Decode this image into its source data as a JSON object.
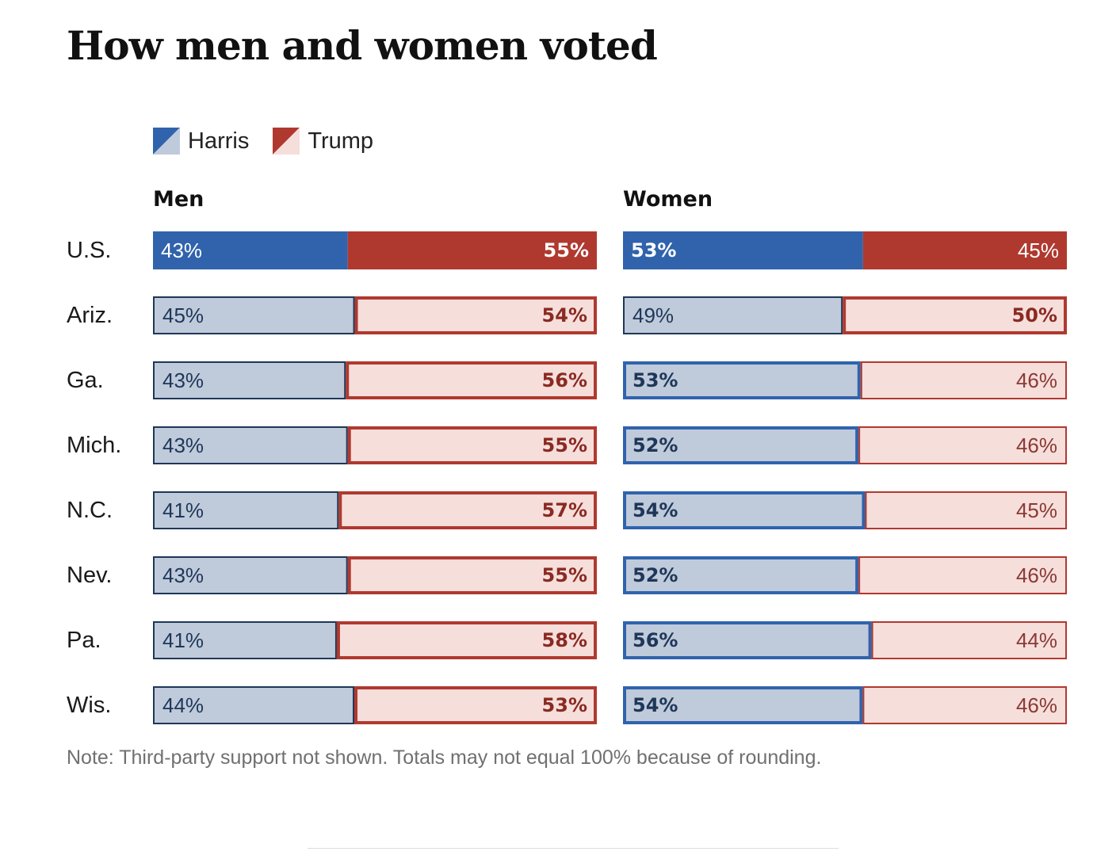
{
  "chart_data": {
    "type": "bar",
    "title": "How men and women voted",
    "legend": [
      "Harris",
      "Trump"
    ],
    "categories": [
      "U.S.",
      "Ariz.",
      "Ga.",
      "Mich.",
      "N.C.",
      "Nev.",
      "Pa.",
      "Wis."
    ],
    "panels": [
      {
        "name": "Men",
        "series": [
          {
            "name": "Harris",
            "values": [
              43,
              45,
              43,
              43,
              41,
              43,
              41,
              44
            ]
          },
          {
            "name": "Trump",
            "values": [
              55,
              54,
              56,
              55,
              57,
              55,
              58,
              53
            ]
          }
        ]
      },
      {
        "name": "Women",
        "series": [
          {
            "name": "Harris",
            "values": [
              53,
              49,
              53,
              52,
              54,
              52,
              56,
              54
            ]
          },
          {
            "name": "Trump",
            "values": [
              45,
              50,
              46,
              46,
              45,
              46,
              44,
              46
            ]
          }
        ]
      }
    ],
    "note": "Note: Third-party support not shown. Totals may not equal 100% because of rounding.",
    "colors": {
      "harris_strong": "#3063ac",
      "harris_light": "#bfcadb",
      "harris_dark_text": "#1e3758",
      "trump_strong": "#b0392f",
      "trump_light": "#f6dedb",
      "trump_dark_text": "#8a2a22"
    }
  }
}
